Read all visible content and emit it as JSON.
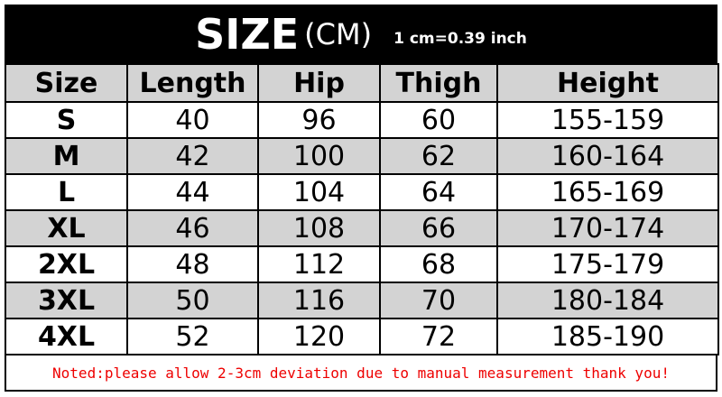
{
  "title": {
    "main": "SIZE",
    "unit": "(CM)",
    "conversion": "1 cm=0.39 inch"
  },
  "table": {
    "header": [
      "Size",
      "Length",
      "Hip",
      "Thigh",
      "Height"
    ],
    "rows": [
      [
        "S",
        40,
        96,
        60,
        "155-159"
      ],
      [
        "M",
        42,
        100,
        62,
        "160-164"
      ],
      [
        "L",
        44,
        104,
        64,
        "165-169"
      ],
      [
        "XL",
        46,
        108,
        66,
        "170-174"
      ],
      [
        "2XL",
        48,
        112,
        68,
        "175-179"
      ],
      [
        "3XL",
        50,
        116,
        70,
        "180-184"
      ],
      [
        "4XL",
        52,
        120,
        72,
        "185-190"
      ]
    ]
  },
  "note": "Noted:please allow 2-3cm deviation due to manual measurement thank you!"
}
